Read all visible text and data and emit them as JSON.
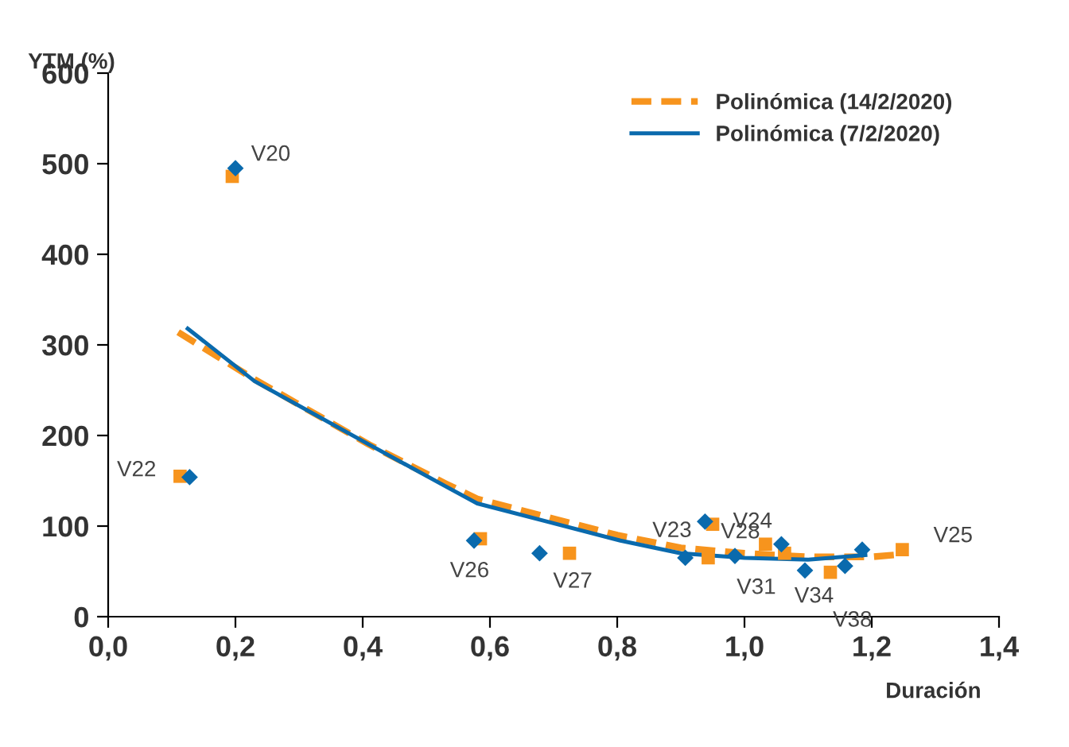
{
  "chart_data": {
    "type": "scatter",
    "xlabel": "Duración",
    "ylabel": "YTM (%)",
    "xlim": [
      0,
      1.4
    ],
    "ylim": [
      0,
      600
    ],
    "xticks": [
      {
        "value": 0,
        "label": "0,0"
      },
      {
        "value": 0.2,
        "label": "0,2"
      },
      {
        "value": 0.4,
        "label": "0,4"
      },
      {
        "value": 0.6,
        "label": "0,6"
      },
      {
        "value": 0.8,
        "label": "0,8"
      },
      {
        "value": 1.0,
        "label": "1,0"
      },
      {
        "value": 1.2,
        "label": "1,2"
      },
      {
        "value": 1.4,
        "label": "1,4"
      }
    ],
    "yticks": [
      0,
      100,
      200,
      300,
      400,
      500,
      600
    ],
    "grid": false,
    "legend": "top right",
    "series": [
      {
        "marker": "square",
        "color": "#f7941d",
        "x": [
          0.195,
          0.113,
          0.585,
          0.725,
          0.943,
          0.95,
          1.033,
          1.063,
          1.135,
          1.248
        ],
        "values": [
          486,
          155,
          86,
          70,
          65,
          102,
          80,
          70,
          49,
          74
        ]
      },
      {
        "marker": "diamond",
        "color": "#0a6aad",
        "x": [
          0.2,
          0.128,
          0.575,
          0.678,
          0.907,
          0.938,
          0.985,
          1.058,
          1.095,
          1.158,
          1.185
        ],
        "values": [
          495,
          154,
          84,
          70,
          65,
          105,
          67,
          80,
          51,
          56,
          74
        ]
      },
      {
        "type": "line",
        "name": "Polinómica (14/2/2020)",
        "line_style": "dashed",
        "color": "#f7941d",
        "x": [
          0.11,
          0.23,
          0.41,
          0.53,
          0.58,
          0.69,
          0.8,
          0.9,
          1.0,
          1.1,
          1.2,
          1.25
        ],
        "values": [
          314,
          262,
          190,
          147,
          130,
          110,
          90,
          76,
          70,
          66,
          66,
          69
        ]
      },
      {
        "type": "line",
        "name": "Polinómica (7/2/2020)",
        "line_style": "solid",
        "color": "#0a6aad",
        "x": [
          0.125,
          0.23,
          0.41,
          0.53,
          0.58,
          0.69,
          0.805,
          0.9,
          1.0,
          1.1,
          1.19
        ],
        "values": [
          318,
          260,
          190,
          144,
          125,
          105,
          84,
          70,
          65,
          63,
          68
        ]
      }
    ],
    "annotations": [
      {
        "text": "V20",
        "x": 0.2,
        "y": 495
      },
      {
        "text": "V22",
        "x": 0.128,
        "y": 154
      },
      {
        "text": "V26",
        "x": 0.575,
        "y": 84
      },
      {
        "text": "V27",
        "x": 0.678,
        "y": 70
      },
      {
        "text": "V23",
        "x": 0.907,
        "y": 65
      },
      {
        "text": "V28",
        "x": 0.938,
        "y": 105
      },
      {
        "text": "V24",
        "x": 1.058,
        "y": 80
      },
      {
        "text": "V31",
        "x": 1.095,
        "y": 51
      },
      {
        "text": "V34",
        "x": 1.158,
        "y": 56
      },
      {
        "text": "V38",
        "x": 1.135,
        "y": 49
      },
      {
        "text": "V25",
        "x": 1.248,
        "y": 74
      }
    ]
  }
}
